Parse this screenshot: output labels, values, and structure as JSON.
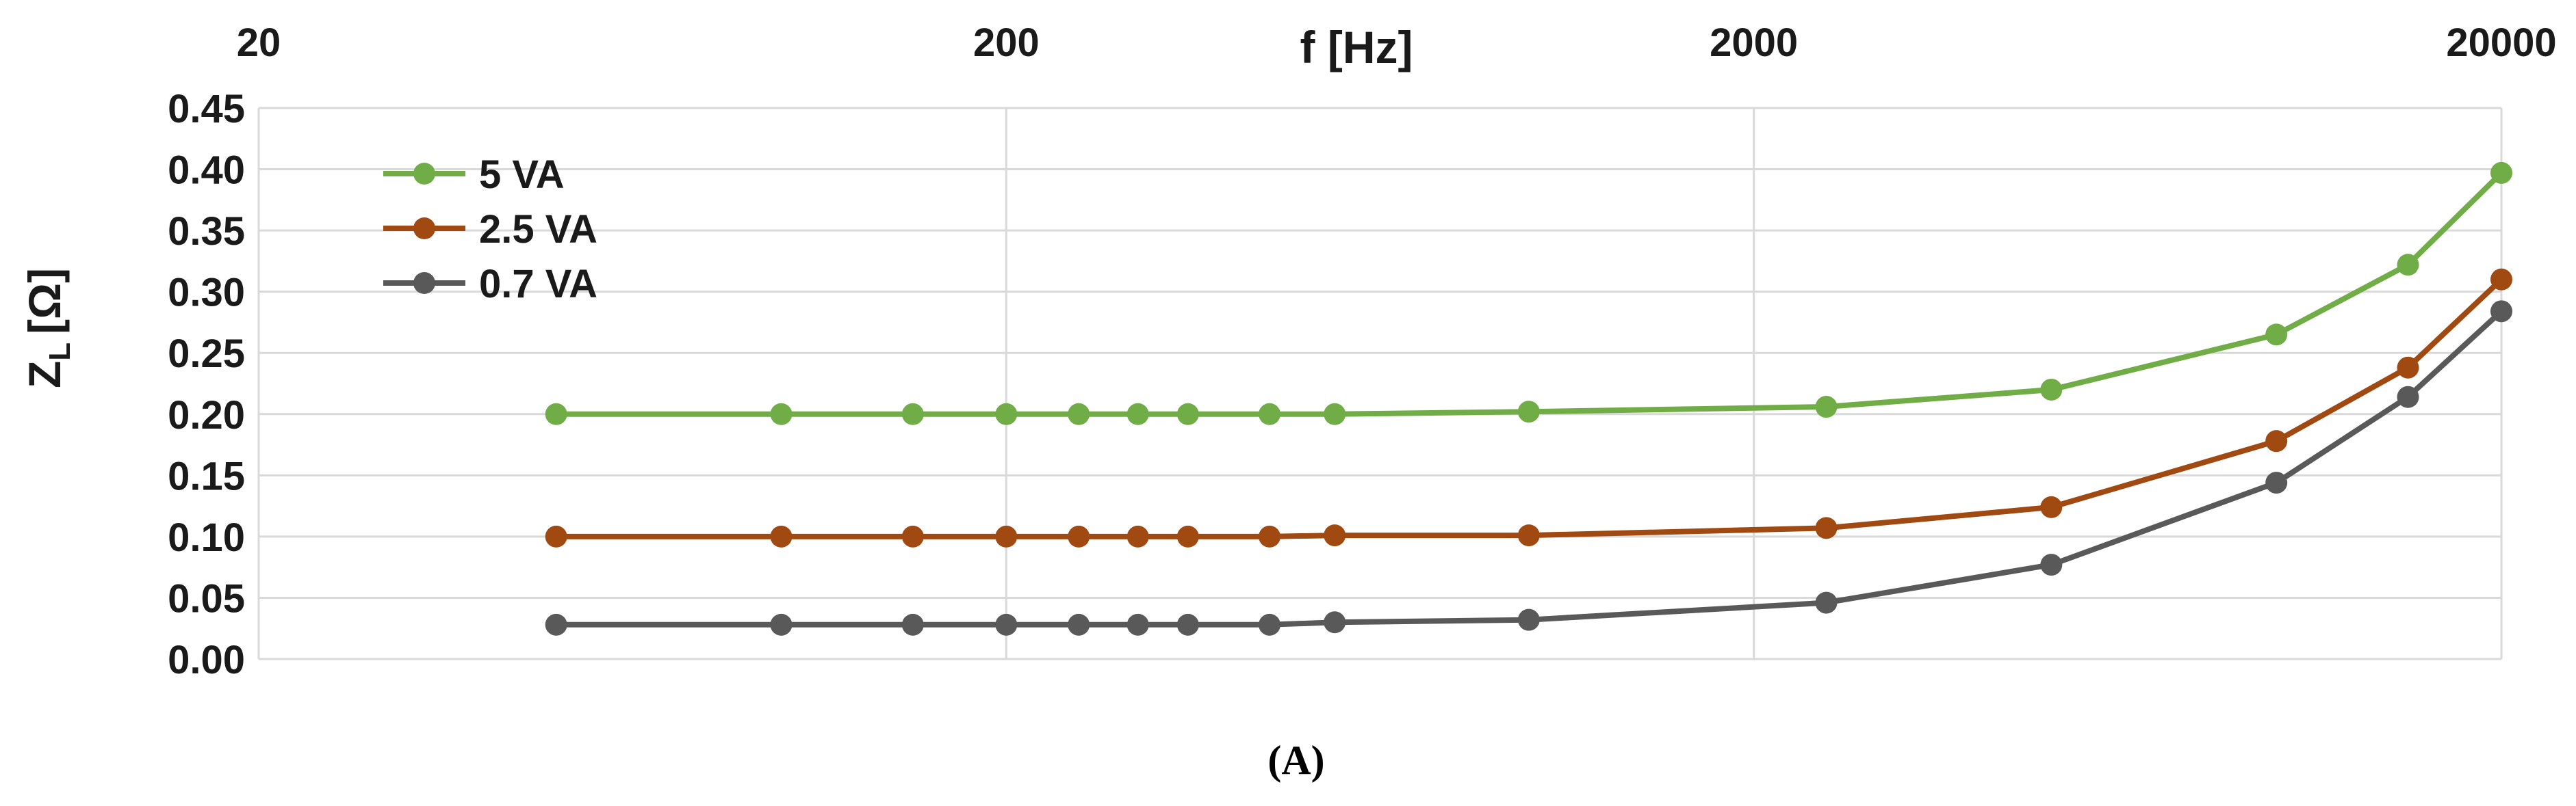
{
  "chart_data": {
    "type": "line",
    "x_scale": "log",
    "xlabel": "f [Hz]",
    "ylabel_main": "Z",
    "ylabel_sub": "L",
    "ylabel_unit": "[Ω]",
    "xlim": [
      20,
      20000
    ],
    "ylim": [
      0,
      0.45
    ],
    "x_ticks": [
      20,
      200,
      2000,
      20000
    ],
    "x_tick_labels": [
      "20",
      "200",
      "2000",
      "20000"
    ],
    "y_ticks": [
      0,
      0.05,
      0.1,
      0.15,
      0.2,
      0.25,
      0.3,
      0.35,
      0.4,
      0.45
    ],
    "y_tick_labels": [
      "0.00",
      "0.05",
      "0.10",
      "0.15",
      "0.20",
      "0.25",
      "0.30",
      "0.35",
      "0.40",
      "0.45"
    ],
    "grid": true,
    "legend_position": "top-left",
    "x": [
      50,
      100,
      150,
      200,
      250,
      300,
      350,
      450,
      550,
      1000,
      2500,
      5000,
      10000,
      15000,
      20000
    ],
    "series": [
      {
        "name": "5 VA",
        "color": "#70ad47",
        "values": [
          0.2,
          0.2,
          0.2,
          0.2,
          0.2,
          0.2,
          0.2,
          0.2,
          0.2,
          0.202,
          0.206,
          0.22,
          0.265,
          0.322,
          0.397
        ]
      },
      {
        "name": "2.5 VA",
        "color": "#a04a12",
        "values": [
          0.1,
          0.1,
          0.1,
          0.1,
          0.1,
          0.1,
          0.1,
          0.1,
          0.101,
          0.101,
          0.107,
          0.124,
          0.178,
          0.238,
          0.31
        ]
      },
      {
        "name": "0.7 VA",
        "color": "#595959",
        "values": [
          0.028,
          0.028,
          0.028,
          0.028,
          0.028,
          0.028,
          0.028,
          0.028,
          0.03,
          0.032,
          0.046,
          0.077,
          0.144,
          0.214,
          0.284
        ]
      }
    ]
  },
  "caption": "(A)"
}
